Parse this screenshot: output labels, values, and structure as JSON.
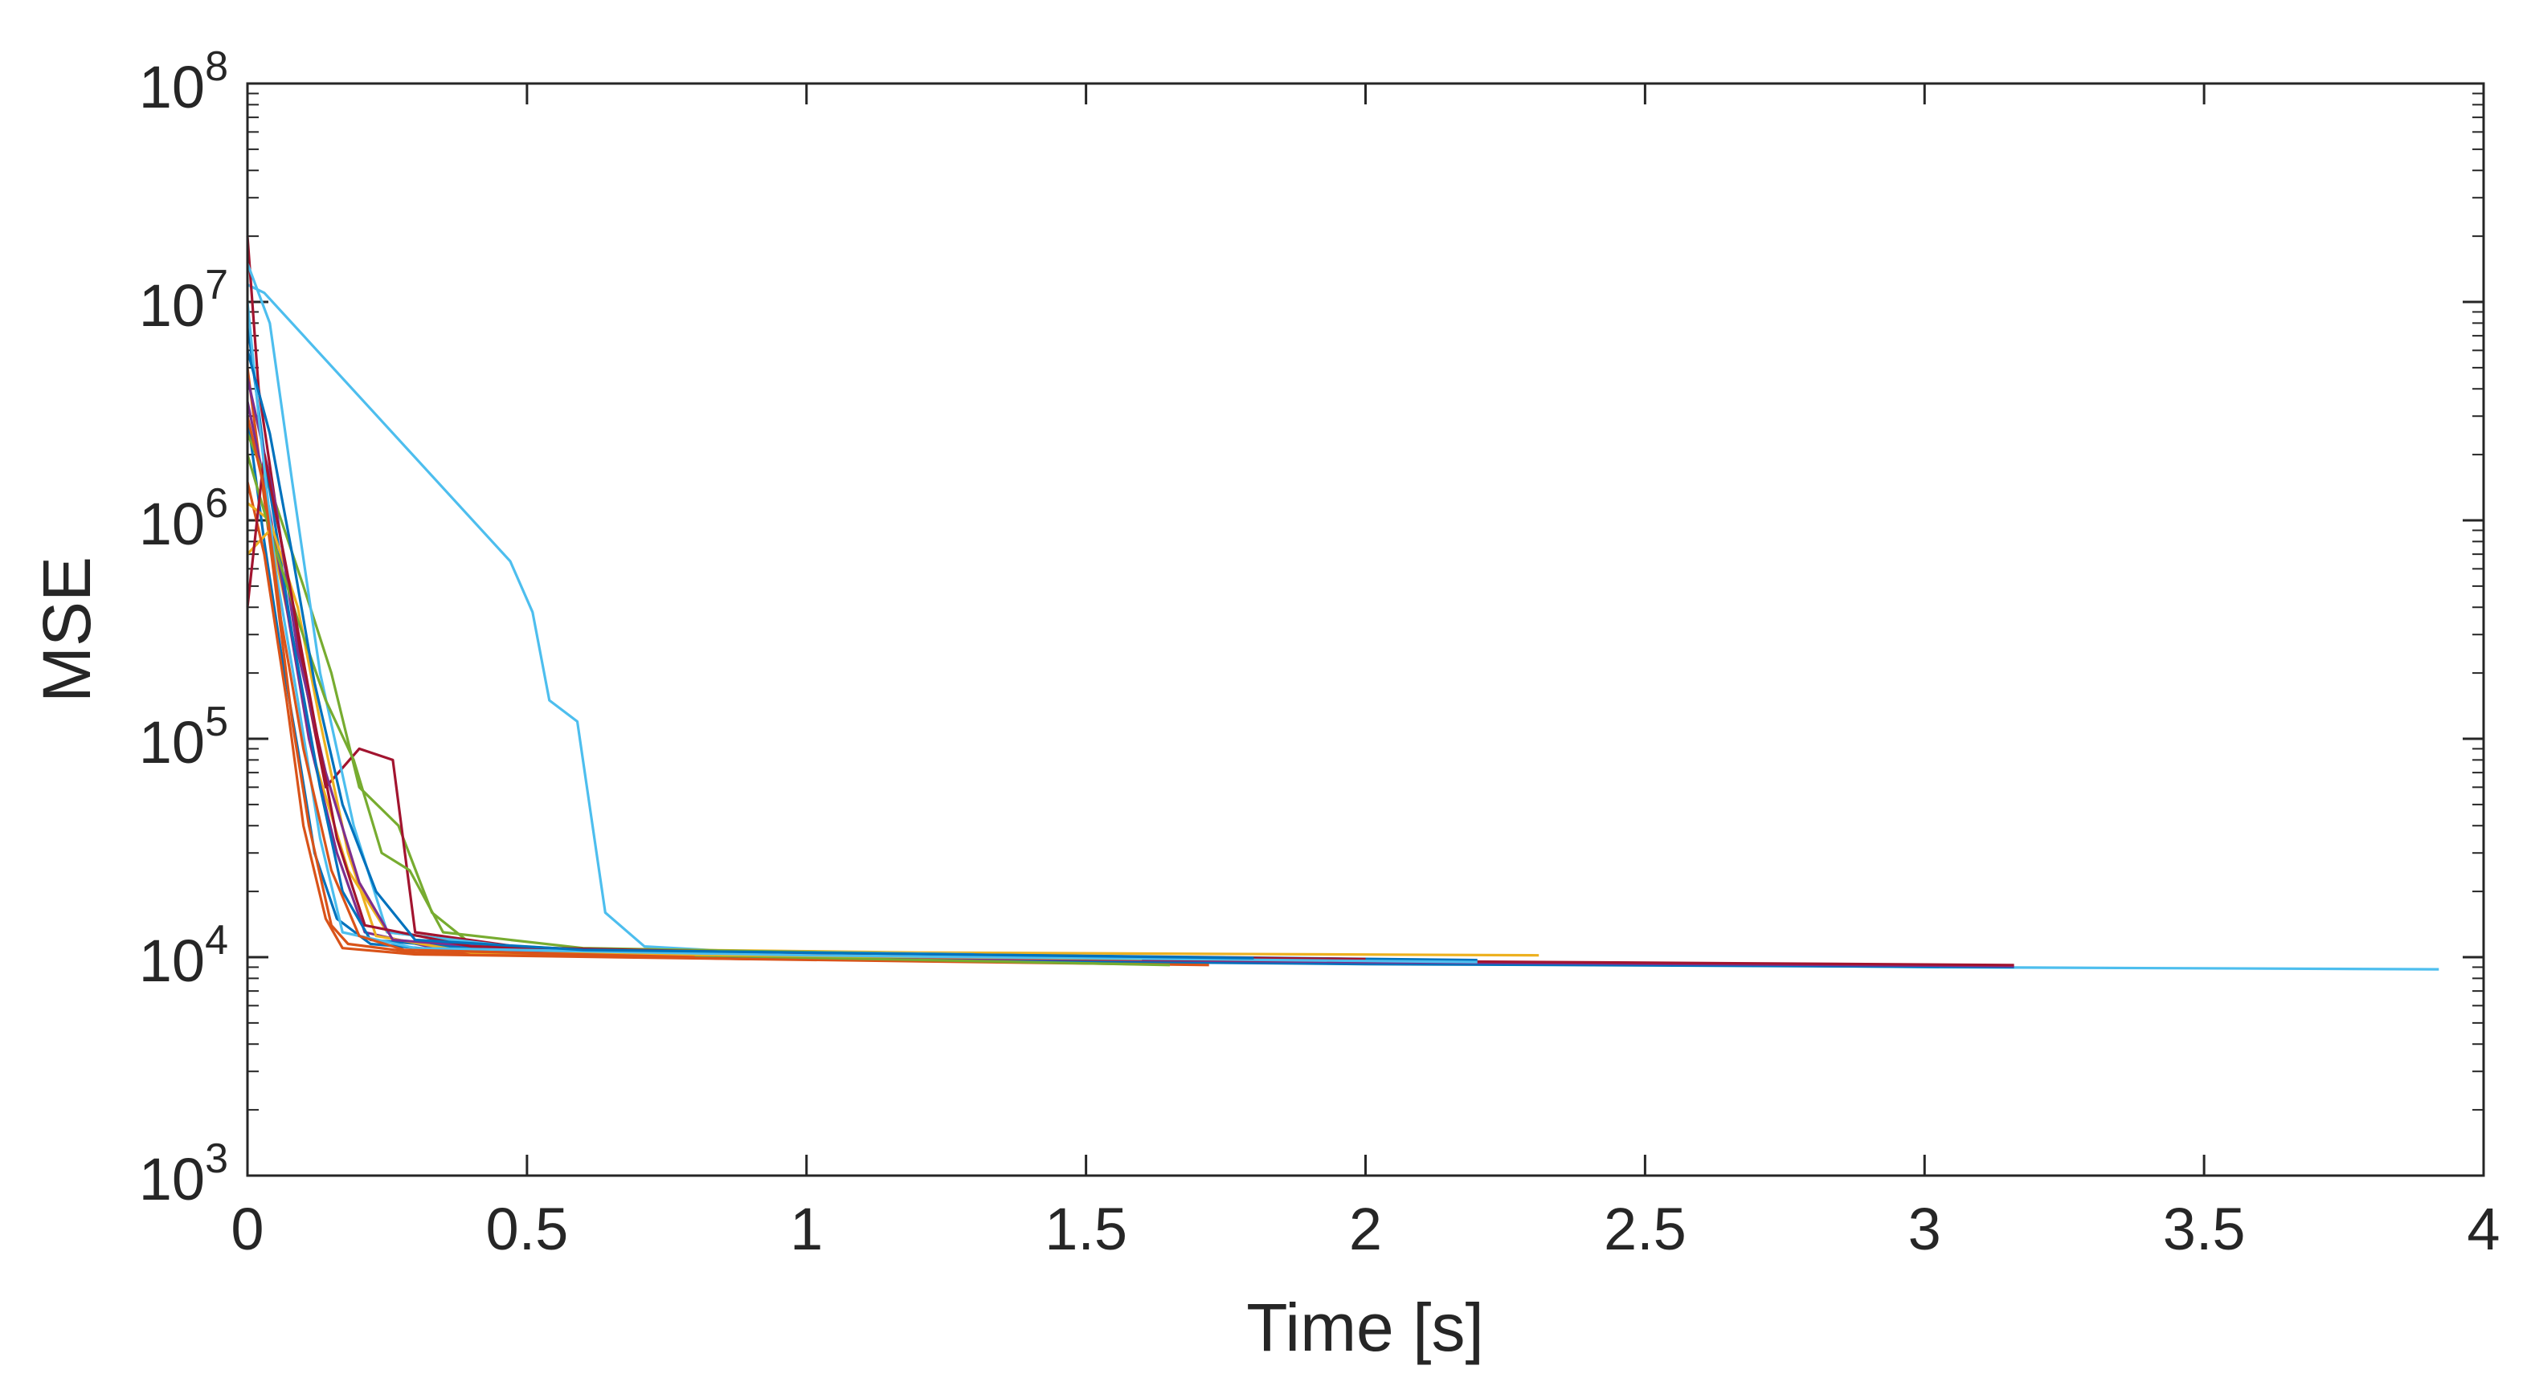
{
  "chart_data": {
    "type": "line",
    "title": "",
    "xlabel": "Time [s]",
    "ylabel": "MSE",
    "xlim": [
      0,
      4
    ],
    "ylim": [
      1000,
      100000000
    ],
    "yscale": "log",
    "grid": false,
    "legend": "none",
    "x_ticks": [
      "0",
      "0.5",
      "1",
      "1.5",
      "2",
      "2.5",
      "3",
      "3.5",
      "4"
    ],
    "y_ticks": [
      {
        "base": "10",
        "exp": "3"
      },
      {
        "base": "10",
        "exp": "4"
      },
      {
        "base": "10",
        "exp": "5"
      },
      {
        "base": "10",
        "exp": "6"
      },
      {
        "base": "10",
        "exp": "7"
      },
      {
        "base": "10",
        "exp": "8"
      }
    ],
    "series": [
      {
        "color": "#4DBEEE",
        "x": [
          0,
          0.03,
          0.47,
          0.51,
          0.54,
          0.59,
          0.64,
          0.71,
          1.0,
          2.0,
          3.0,
          3.92
        ],
        "y": [
          12000000,
          11000000,
          650000,
          380000,
          150000,
          120000,
          16000,
          11200,
          10200,
          9600,
          9000,
          8800
        ]
      },
      {
        "color": "#0072BD",
        "x": [
          0,
          0.03,
          0.06,
          0.09,
          0.12,
          0.16,
          0.22,
          0.4,
          1.0,
          2.0,
          3.16
        ],
        "y": [
          3000000,
          800000,
          250000,
          90000,
          30000,
          15000,
          11500,
          10500,
          9800,
          9300,
          9000
        ]
      },
      {
        "color": "#D95319",
        "x": [
          0,
          0.02,
          0.05,
          0.08,
          0.11,
          0.15,
          0.18,
          0.3,
          0.9,
          1.72
        ],
        "y": [
          5000000,
          2000000,
          500000,
          120000,
          40000,
          14000,
          11500,
          10500,
          9800,
          9200
        ]
      },
      {
        "color": "#EDB120",
        "x": [
          0,
          0.04,
          0.08,
          0.12,
          0.18,
          0.25,
          0.5,
          1.2,
          2.31
        ],
        "y": [
          700000,
          900000,
          300000,
          80000,
          25000,
          13000,
          11000,
          10500,
          10200
        ]
      },
      {
        "color": "#7E2F8E",
        "x": [
          0,
          0.03,
          0.07,
          0.11,
          0.16,
          0.21,
          0.35,
          1.0,
          2.0,
          3.16
        ],
        "y": [
          3500000,
          1500000,
          400000,
          100000,
          30000,
          13000,
          10800,
          10000,
          9500,
          9100
        ]
      },
      {
        "color": "#77AC30",
        "x": [
          0,
          0.05,
          0.1,
          0.15,
          0.2,
          0.27,
          0.33,
          0.4,
          0.8,
          1.65
        ],
        "y": [
          2500000,
          1200000,
          500000,
          200000,
          60000,
          40000,
          16000,
          11500,
          10200,
          9200
        ]
      },
      {
        "color": "#A2142F",
        "x": [
          0,
          0.02,
          0.06,
          0.1,
          0.14,
          0.2,
          0.26,
          0.3,
          0.5,
          1.5,
          3.16
        ],
        "y": [
          20000000,
          4000000,
          800000,
          200000,
          60000,
          90000,
          80000,
          13000,
          11000,
          9800,
          9200
        ]
      },
      {
        "color": "#4DBEEE",
        "x": [
          0,
          0.04,
          0.08,
          0.13,
          0.19,
          0.25,
          0.5,
          1.3
        ],
        "y": [
          15000000,
          8000000,
          1500000,
          200000,
          40000,
          13000,
          11000,
          10300
        ]
      },
      {
        "color": "#0072BD",
        "x": [
          0,
          0.03,
          0.08,
          0.13,
          0.17,
          0.22,
          0.4,
          1.1,
          2.2
        ],
        "y": [
          8000000,
          2000000,
          300000,
          60000,
          20000,
          12000,
          11000,
          10400,
          9700
        ]
      },
      {
        "color": "#D95319",
        "x": [
          0,
          0.03,
          0.07,
          0.1,
          0.14,
          0.17,
          0.3,
          0.9
        ],
        "y": [
          1500000,
          700000,
          150000,
          40000,
          15000,
          11000,
          10300,
          9800
        ]
      },
      {
        "color": "#EDB120",
        "x": [
          0,
          0.04,
          0.09,
          0.13,
          0.18,
          0.23,
          0.4,
          1.6
        ],
        "y": [
          1200000,
          1000000,
          400000,
          120000,
          30000,
          12500,
          10500,
          9800
        ]
      },
      {
        "color": "#7E2F8E",
        "x": [
          0,
          0.05,
          0.09,
          0.14,
          0.2,
          0.26,
          0.5,
          1.2
        ],
        "y": [
          4500000,
          1200000,
          250000,
          70000,
          22000,
          12000,
          10800,
          10200
        ]
      },
      {
        "color": "#77AC30",
        "x": [
          0,
          0.04,
          0.09,
          0.14,
          0.19,
          0.24,
          0.29,
          0.35,
          0.6,
          1.4
        ],
        "y": [
          2000000,
          900000,
          350000,
          150000,
          80000,
          30000,
          25000,
          13000,
          11000,
          10100
        ]
      },
      {
        "color": "#A2142F",
        "x": [
          0,
          0.03,
          0.07,
          0.12,
          0.16,
          0.21,
          0.4,
          1.0,
          2.0
        ],
        "y": [
          400000,
          2000000,
          600000,
          120000,
          35000,
          14000,
          11200,
          10400,
          9800
        ]
      },
      {
        "color": "#4DBEEE",
        "x": [
          0,
          0.02,
          0.05,
          0.09,
          0.13,
          0.17,
          0.3,
          1.0,
          2.2
        ],
        "y": [
          10000000,
          3000000,
          600000,
          150000,
          35000,
          13000,
          11000,
          10200,
          9500
        ]
      },
      {
        "color": "#0072BD",
        "x": [
          0,
          0.04,
          0.08,
          0.12,
          0.17,
          0.23,
          0.3,
          0.6,
          1.8
        ],
        "y": [
          6000000,
          2500000,
          700000,
          180000,
          50000,
          20000,
          12000,
          10800,
          9900
        ]
      },
      {
        "color": "#D95319",
        "x": [
          0,
          0.03,
          0.06,
          0.1,
          0.15,
          0.2,
          0.28,
          0.8
        ],
        "y": [
          3000000,
          1400000,
          350000,
          90000,
          25000,
          12500,
          10800,
          10000
        ]
      }
    ]
  }
}
